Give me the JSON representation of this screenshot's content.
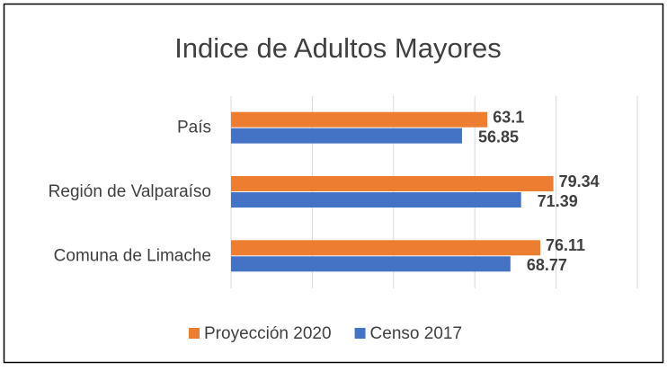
{
  "chart_data": {
    "type": "hbar",
    "title": "Indice de Adultos Mayores",
    "categories": [
      "País",
      "Región de Valparaíso",
      "Comuna de Limache"
    ],
    "series": [
      {
        "name": "Proyección 2020",
        "color": "#ed7d31",
        "values": [
          63.1,
          79.34,
          76.11
        ]
      },
      {
        "name": "Censo 2017",
        "color": "#4472c4",
        "values": [
          56.85,
          71.39,
          68.77
        ]
      }
    ],
    "xlim": [
      0,
      100
    ],
    "xticks": [
      0,
      20,
      40,
      60,
      80,
      100
    ],
    "grid": true,
    "legend": "bottom"
  }
}
